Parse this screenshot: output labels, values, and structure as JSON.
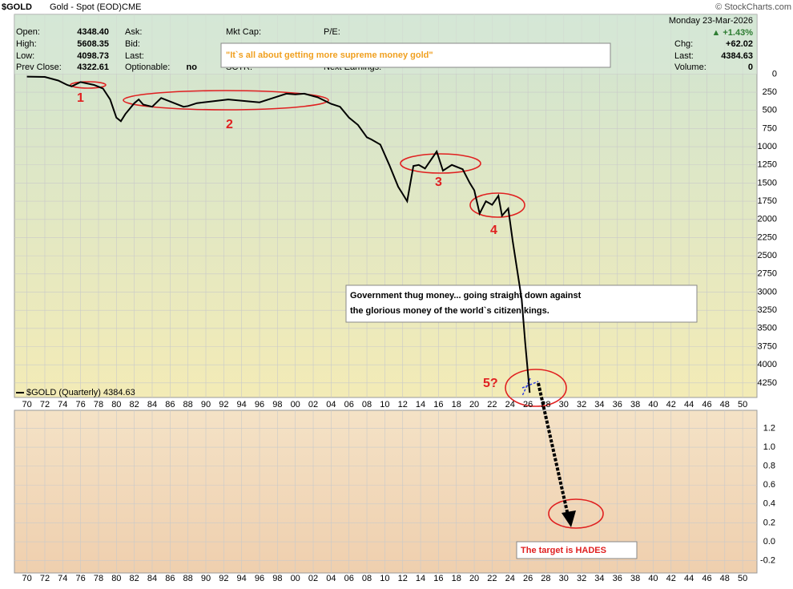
{
  "header": {
    "symbol": "$GOLD",
    "description": "Gold - Spot (EOD)",
    "exchange": "CME",
    "copyright": "© StockCharts.com",
    "date": "Monday  23-Mar-2026",
    "change_pct": "▲ +1.43%",
    "left_fields": [
      [
        "Open:",
        "4348.40"
      ],
      [
        "High:",
        "5608.35"
      ],
      [
        "Low:",
        "4098.73"
      ],
      [
        "Prev Close:",
        "4322.61"
      ]
    ],
    "mid_fields": [
      [
        "Ask:",
        ""
      ],
      [
        "Bid:",
        ""
      ],
      [
        "Last:",
        ""
      ],
      [
        "Optionable:",
        "no"
      ]
    ],
    "col3": [
      "Mkt Cap:",
      "SCTR:"
    ],
    "col4": [
      "P/E:",
      "Next Earnings:"
    ],
    "right_fields": [
      [
        "Chg:",
        "+62.02"
      ],
      [
        "Last:",
        "4384.63"
      ],
      [
        "Volume:",
        "0"
      ]
    ]
  },
  "chart_data": {
    "type": "line",
    "invert": true,
    "x": [
      1970,
      1972,
      1973.5,
      1974.5,
      1975,
      1976,
      1977.5,
      1978.5,
      1979.3,
      1980,
      1980.5,
      1981,
      1982,
      1982.5,
      1983,
      1984,
      1985,
      1987.5,
      1988,
      1989,
      1990.5,
      1992.5,
      1995,
      1996,
      1997.5,
      1999,
      2000,
      2001,
      2002.5,
      2004,
      2005,
      2006,
      2007,
      2008,
      2008.5,
      2009.5,
      2010.5,
      2011.5,
      2012,
      2012.5,
      2013.2,
      2013.8,
      2014.5,
      2015.8,
      2016.5,
      2017.5,
      2018.7,
      2019.5,
      2020,
      2020.6,
      2021.3,
      2022,
      2022.7,
      2023.1,
      2023.8,
      2024.3,
      2024.8,
      2025.3,
      2025.7,
      2026.2
    ],
    "series": [
      {
        "name": "$GOLD (Quarterly) 4384.63",
        "color": "#000000",
        "values": [
          35,
          40,
          90,
          150,
          170,
          110,
          150,
          200,
          350,
          600,
          650,
          550,
          400,
          350,
          420,
          450,
          330,
          450,
          440,
          400,
          380,
          350,
          380,
          390,
          330,
          270,
          280,
          270,
          320,
          410,
          450,
          600,
          700,
          870,
          900,
          970,
          1250,
          1550,
          1650,
          1750,
          1265,
          1250,
          1300,
          1065,
          1330,
          1250,
          1310,
          1500,
          1600,
          1920,
          1750,
          1800,
          1675,
          1950,
          1850,
          2300,
          2700,
          3100,
          3700,
          4384.63
        ]
      }
    ],
    "xlim": [
      1968.6,
      2051.6
    ],
    "xticks": [
      {
        "value": 1970,
        "label": "70"
      },
      {
        "value": 1972,
        "label": "72"
      },
      {
        "value": 1974,
        "label": "74"
      },
      {
        "value": 1976,
        "label": "76"
      },
      {
        "value": 1978,
        "label": "78"
      },
      {
        "value": 1980,
        "label": "80"
      },
      {
        "value": 1982,
        "label": "82"
      },
      {
        "value": 1984,
        "label": "84"
      },
      {
        "value": 1986,
        "label": "86"
      },
      {
        "value": 1988,
        "label": "88"
      },
      {
        "value": 1990,
        "label": "90"
      },
      {
        "value": 1992,
        "label": "92"
      },
      {
        "value": 1994,
        "label": "94"
      },
      {
        "value": 1996,
        "label": "96"
      },
      {
        "value": 1998,
        "label": "98"
      },
      {
        "value": 2000,
        "label": "00"
      },
      {
        "value": 2002,
        "label": "02"
      },
      {
        "value": 2004,
        "label": "04"
      },
      {
        "value": 2006,
        "label": "06"
      },
      {
        "value": 2008,
        "label": "08"
      },
      {
        "value": 2010,
        "label": "10"
      },
      {
        "value": 2012,
        "label": "12"
      },
      {
        "value": 2014,
        "label": "14"
      },
      {
        "value": 2016,
        "label": "16"
      },
      {
        "value": 2018,
        "label": "18"
      },
      {
        "value": 2020,
        "label": "20"
      },
      {
        "value": 2022,
        "label": "22"
      },
      {
        "value": 2024,
        "label": "24"
      },
      {
        "value": 2026,
        "label": "26"
      },
      {
        "value": 2028,
        "label": "28"
      },
      {
        "value": 2030,
        "label": "30"
      },
      {
        "value": 2032,
        "label": "32"
      },
      {
        "value": 2034,
        "label": "34"
      },
      {
        "value": 2036,
        "label": "36"
      },
      {
        "value": 2038,
        "label": "38"
      },
      {
        "value": 2040,
        "label": "40"
      },
      {
        "value": 2042,
        "label": "42"
      },
      {
        "value": 2044,
        "label": "44"
      },
      {
        "value": 2046,
        "label": "46"
      },
      {
        "value": 2048,
        "label": "48"
      },
      {
        "value": 2050,
        "label": "50"
      }
    ],
    "ylim": [
      -820,
      4450
    ],
    "yticks": [
      0,
      250,
      500,
      750,
      1000,
      1250,
      1500,
      1750,
      2000,
      2250,
      2500,
      2750,
      3000,
      3250,
      3500,
      3750,
      4000,
      4250
    ],
    "grid": true,
    "lower_panel": {
      "ylim": [
        -0.33,
        1.39
      ],
      "yticks": [
        -0.2,
        {
          "value": 0,
          "label": "0.0"
        },
        0.2,
        0.4,
        0.6,
        0.8,
        {
          "value": 1,
          "label": "1.0"
        },
        1.2
      ]
    },
    "annotations": {
      "headline": "\"It`s all about getting more supreme money gold\"",
      "callout": [
        "Government thug money... going straight down against",
        "the glorious money of the world`s citizen kings."
      ],
      "target": "The target is HADES",
      "labels": [
        "1",
        "2",
        "3",
        "4",
        "5?"
      ]
    }
  }
}
